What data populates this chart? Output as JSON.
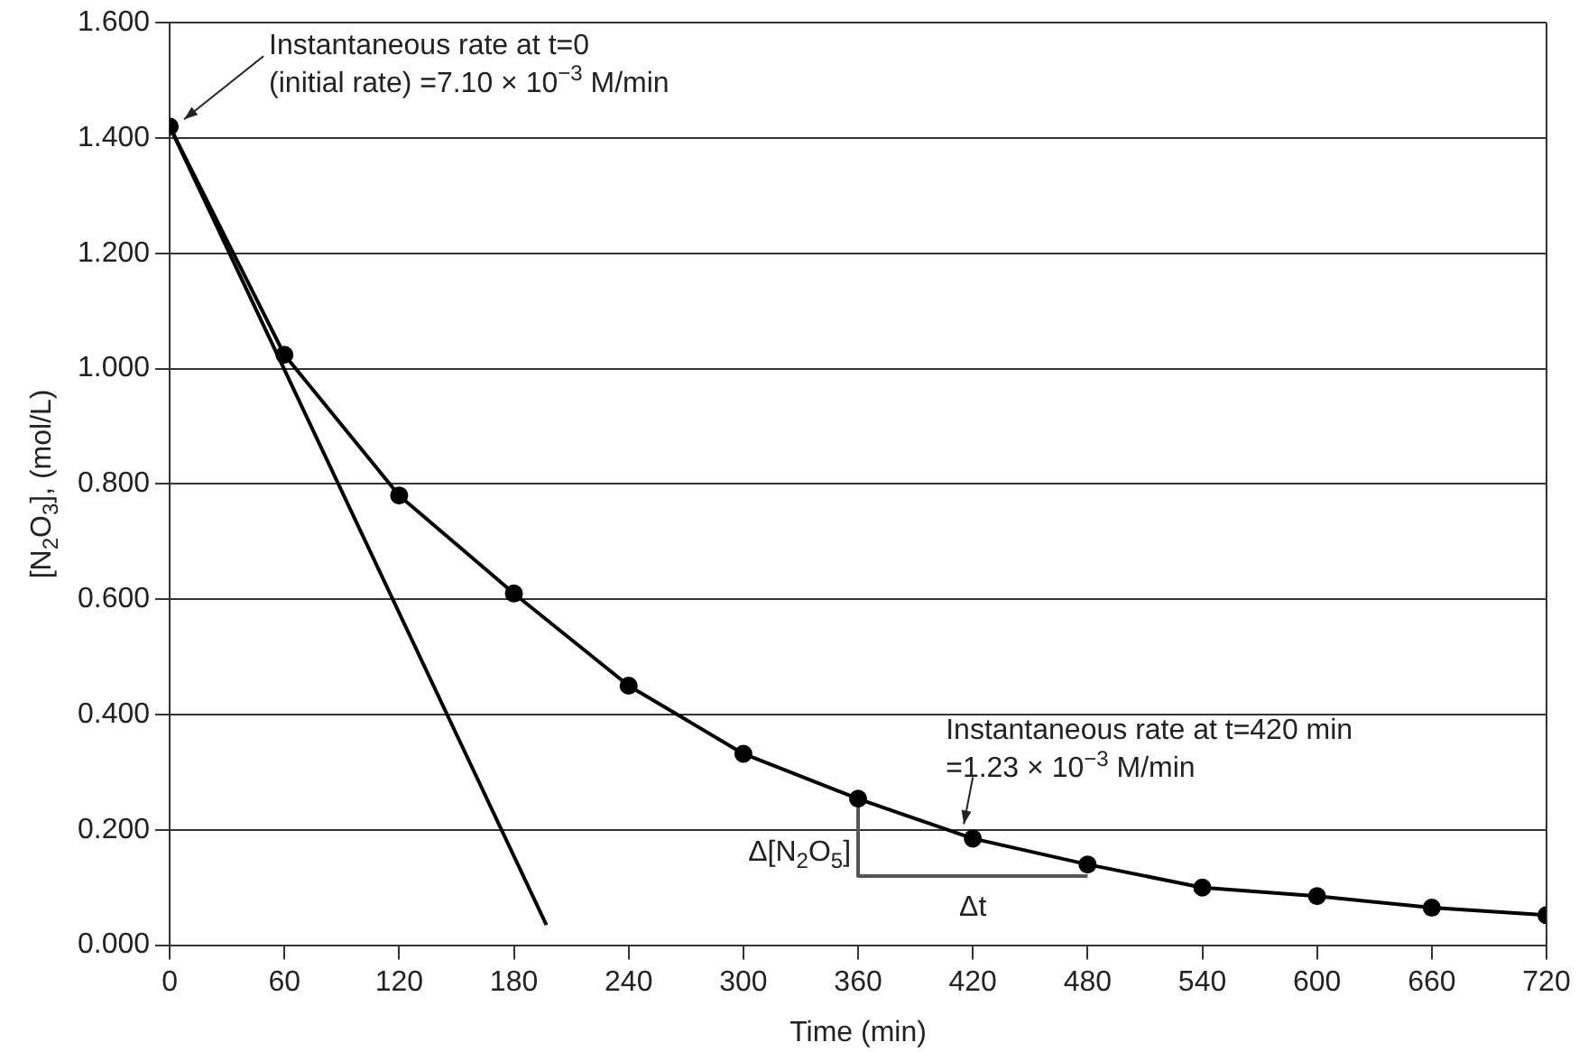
{
  "chart_data": {
    "type": "line",
    "xlabel": "Time (min)",
    "ylabel": "[N$_{2}$O$_{3}$], (mol/L)",
    "xlim": [
      0,
      720
    ],
    "xticks": [
      0,
      60,
      120,
      180,
      240,
      300,
      360,
      420,
      480,
      540,
      600,
      660,
      720
    ],
    "ylim": [
      0,
      1.6
    ],
    "yticks": [
      {
        "value": 0,
        "label": "0.000"
      },
      {
        "value": 0.2,
        "label": "0.200"
      },
      {
        "value": 0.4,
        "label": "0.400"
      },
      {
        "value": 0.6,
        "label": "0.600"
      },
      {
        "value": 0.8,
        "label": "0.800"
      },
      {
        "value": 1,
        "label": "1.000"
      },
      {
        "value": 1.2,
        "label": "1.200"
      },
      {
        "value": 1.4,
        "label": "1.400"
      },
      {
        "value": 1.6,
        "label": "1.600"
      }
    ],
    "grid": "y",
    "legend": false,
    "marker": "circle",
    "line_style": "solid",
    "series": [
      {
        "color": "#000000",
        "x": [
          0,
          60,
          120,
          180,
          240,
          300,
          360,
          420,
          480,
          540,
          600,
          660,
          720
        ],
        "values": [
          1.42,
          1.024,
          0.78,
          0.61,
          0.45,
          0.332,
          0.254,
          0.185,
          0.14,
          0.1,
          0.085,
          0.065,
          0.052
        ]
      },
      {
        "color": "#000000",
        "marker": "none",
        "x": [
          0,
          197
        ],
        "values": [
          1.42,
          0.035
        ]
      },
      {
        "color": "#555555",
        "marker": "none",
        "x": [
          360,
          360,
          480
        ],
        "values": [
          0.254,
          0.12,
          0.12
        ]
      }
    ],
    "annotations": [
      {
        "text": "Instantaneous rate at t=0\n(initial rate) =7.10 × 10$^{−3}$ M/min",
        "x": 0,
        "y": 1.42
      },
      {
        "text": "Instantaneous rate at t=420 min\n=1.23 × 10$^{−3}$ M/min",
        "x": 420,
        "y": 0.185
      },
      {
        "text": "Δ[N$_{2}$O$_{5}$]",
        "x": 360,
        "y": 0.19
      },
      {
        "text": "Δt",
        "x": 420,
        "y": 0.12
      }
    ]
  }
}
